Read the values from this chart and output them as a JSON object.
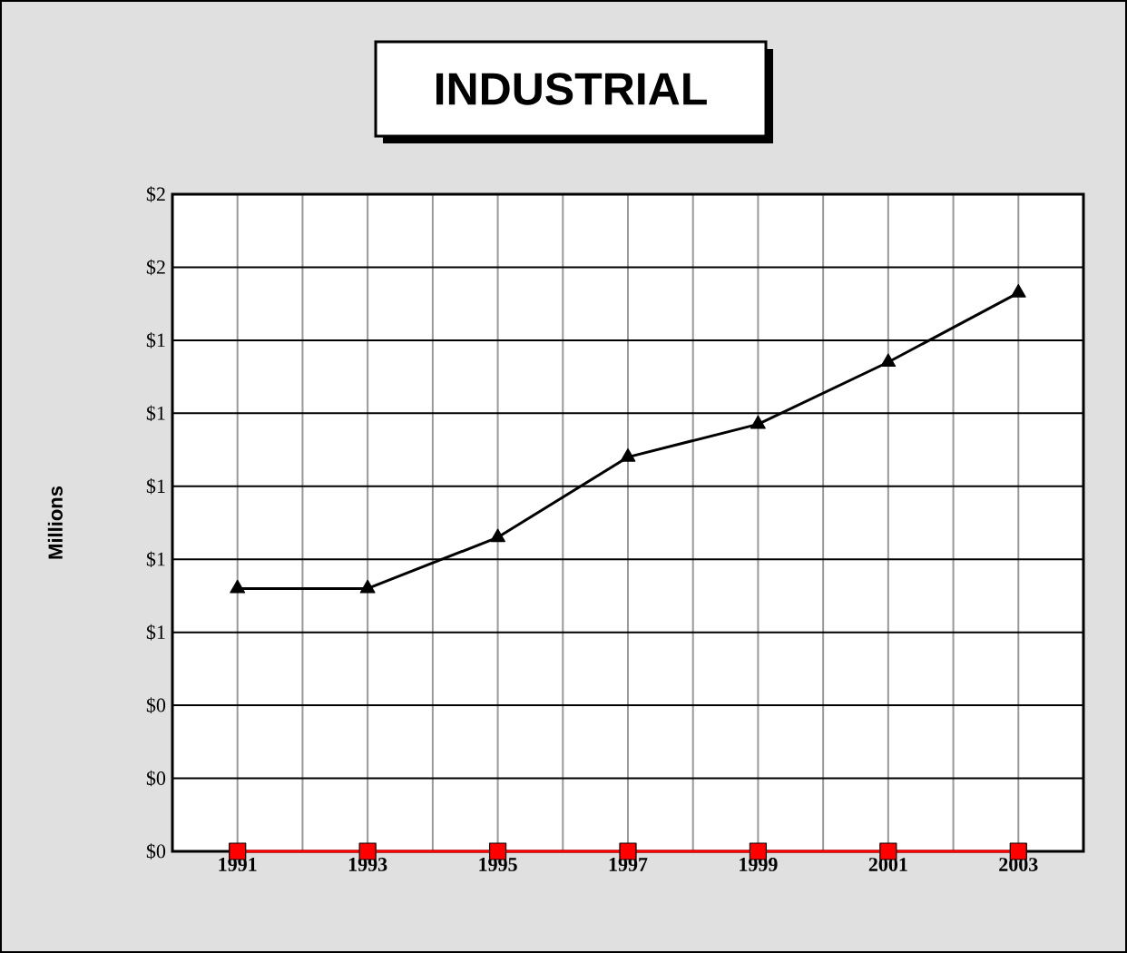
{
  "chart_data": {
    "type": "line",
    "title": "INDUSTRIAL",
    "ylabel": "Millions",
    "categories": [
      "1991",
      "1993",
      "1995",
      "1997",
      "1999",
      "2001",
      "2003"
    ],
    "series": [
      {
        "color": "#000000",
        "marker": "triangle",
        "values": [
          0.72,
          0.72,
          0.86,
          1.08,
          1.17,
          1.34,
          1.53
        ]
      },
      {
        "color": "#ff0000",
        "marker": "square",
        "values": [
          0,
          0,
          0,
          0,
          0,
          0,
          0
        ]
      }
    ],
    "ylim": [
      0,
      1.8
    ],
    "yticks": [
      {
        "value": 0,
        "label": "$0"
      },
      {
        "value": 0.2,
        "label": "$0"
      },
      {
        "value": 0.4,
        "label": "$0"
      },
      {
        "value": 0.6,
        "label": "$1"
      },
      {
        "value": 0.8,
        "label": "$1"
      },
      {
        "value": 1.0,
        "label": "$1"
      },
      {
        "value": 1.2,
        "label": "$1"
      },
      {
        "value": 1.4,
        "label": "$1"
      },
      {
        "value": 1.6,
        "label": "$2"
      },
      {
        "value": 1.8,
        "label": "$2"
      }
    ],
    "grid": true,
    "line_style": "solid"
  }
}
